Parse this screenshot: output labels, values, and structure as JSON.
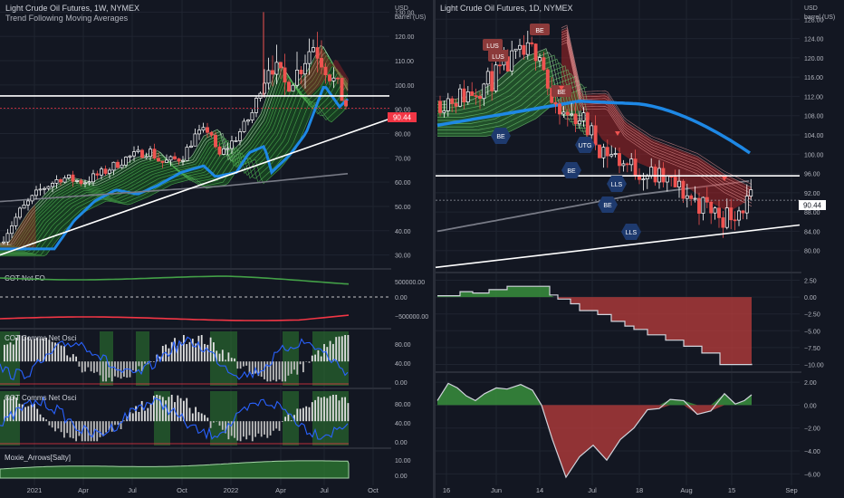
{
  "left": {
    "title": "Light Crude Oil Futures, 1W, NYMEX",
    "subtitle": "Trend Following Moving Averages",
    "price_label": "90.44",
    "axis_unit_1": "USD",
    "axis_unit_2": "barrel (US)",
    "x_ticks": [
      "2021",
      "Apr",
      "Jul",
      "Oct",
      "2022",
      "Apr",
      "Jul",
      "Oct"
    ],
    "panes": {
      "p1": {
        "title": "COT Net FO",
        "ticks": [
          "500000.00",
          "0.00",
          "−500000.00"
        ]
      },
      "p2": {
        "title": "COT Comms Net Osci",
        "ticks": [
          "80.00",
          "40.00",
          "0.00"
        ]
      },
      "p3": {
        "title": "COT Comms Net Osci",
        "ticks": [
          "80.00",
          "40.00",
          "0.00"
        ]
      },
      "p4": {
        "title": "Moxie_Arrows[Salty]",
        "ticks": [
          "10.00",
          "0.00"
        ]
      }
    }
  },
  "right": {
    "title": "Light Crude Oil Futures, 1D, NYMEX",
    "price_label": "90.44",
    "axis_unit_1": "USD",
    "axis_unit_2": "barrel (US)",
    "x_ticks": [
      "16",
      "Jun",
      "14",
      "Jul",
      "18",
      "Aug",
      "15",
      "Sep"
    ],
    "pane_a_ticks": [
      "2.50",
      "0.00",
      "−2.50",
      "−5.00",
      "−7.50",
      "−10.00"
    ],
    "pane_b_ticks": [
      "2.00",
      "0.00",
      "−2.00",
      "−4.00",
      "−6.00"
    ],
    "badges": [
      "LUS",
      "LUS",
      "BE",
      "BE",
      "BE",
      "UTG",
      "BE",
      "LLS",
      "BE",
      "LLS"
    ]
  },
  "chart_data": [
    {
      "type": "line",
      "title": "Light Crude Oil Futures, 1W, NYMEX",
      "subtitle": "Trend Following Moving Averages",
      "ylabel": "USD barrel (US)",
      "ylim": [
        25,
        135
      ],
      "yticks": [
        130,
        120,
        110,
        100,
        90,
        80,
        70,
        60,
        50,
        40,
        30
      ],
      "x": [
        "2020-12-07",
        "2021-01-04",
        "2021-02-01",
        "2021-03-01",
        "2021-04-05",
        "2021-05-03",
        "2021-06-07",
        "2021-07-05",
        "2021-08-02",
        "2021-09-06",
        "2021-10-04",
        "2021-11-01",
        "2021-12-06",
        "2022-01-03",
        "2022-02-07",
        "2022-03-07",
        "2022-04-04",
        "2022-05-02",
        "2022-06-06",
        "2022-07-04",
        "2022-07-25"
      ],
      "series": [
        {
          "values": [
            35,
            48,
            57,
            62,
            60,
            64,
            70,
            73,
            68,
            70,
            79,
            82,
            70,
            78,
            88,
            110,
            100,
            106,
            117,
            104,
            90
          ]
        }
      ],
      "horizontal_line": 95.5,
      "last_value": 90.44
    },
    {
      "type": "line",
      "title": "Light Crude Oil Futures, 1D, NYMEX",
      "ylabel": "USD barrel (US)",
      "ylim": [
        78,
        130
      ],
      "yticks": [
        128,
        124,
        120,
        116,
        112,
        108,
        104,
        100,
        96,
        92,
        88,
        84,
        80
      ],
      "x": [
        "2022-05-16",
        "2022-05-23",
        "2022-06-01",
        "2022-06-08",
        "2022-06-14",
        "2022-06-22",
        "2022-07-01",
        "2022-07-08",
        "2022-07-18",
        "2022-07-26",
        "2022-08-01",
        "2022-08-09",
        "2022-08-15",
        "2022-08-19"
      ],
      "series": [
        {
          "values": [
            111,
            112,
            115,
            120,
            122,
            108,
            108,
            102,
            98,
            96,
            94,
            90,
            87,
            90.44
          ]
        }
      ],
      "horizontal_line": 95.5,
      "last_value": 90.44
    }
  ]
}
